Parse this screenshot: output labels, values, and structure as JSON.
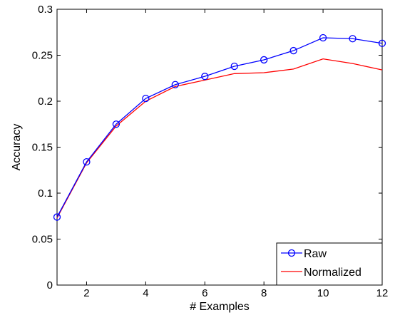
{
  "chart_data": {
    "type": "line",
    "title": "",
    "xlabel": "# Examples",
    "ylabel": "Accuracy",
    "xlim": [
      1,
      12
    ],
    "ylim": [
      0,
      0.3
    ],
    "x_ticks": [
      2,
      4,
      6,
      8,
      10,
      12
    ],
    "x_tick_labels": [
      "2",
      "4",
      "6",
      "8",
      "10",
      "12"
    ],
    "y_ticks": [
      0,
      0.05,
      0.1,
      0.15,
      0.2,
      0.25,
      0.3
    ],
    "y_tick_labels": [
      "0",
      "0.05",
      "0.1",
      "0.15",
      "0.2",
      "0.25",
      "0.3"
    ],
    "grid": false,
    "legend_position": "bottom-right",
    "x": [
      1,
      2,
      3,
      4,
      5,
      6,
      7,
      8,
      9,
      10,
      11,
      12
    ],
    "series": [
      {
        "name": "Raw",
        "color": "#0000ff",
        "marker": "circle",
        "values": [
          0.074,
          0.134,
          0.175,
          0.203,
          0.218,
          0.227,
          0.238,
          0.245,
          0.255,
          0.269,
          0.268,
          0.263
        ]
      },
      {
        "name": "Normalized",
        "color": "#ff0000",
        "marker": "none",
        "values": [
          0.073,
          0.133,
          0.173,
          0.2,
          0.216,
          0.223,
          0.23,
          0.231,
          0.235,
          0.246,
          0.241,
          0.234
        ]
      }
    ]
  }
}
